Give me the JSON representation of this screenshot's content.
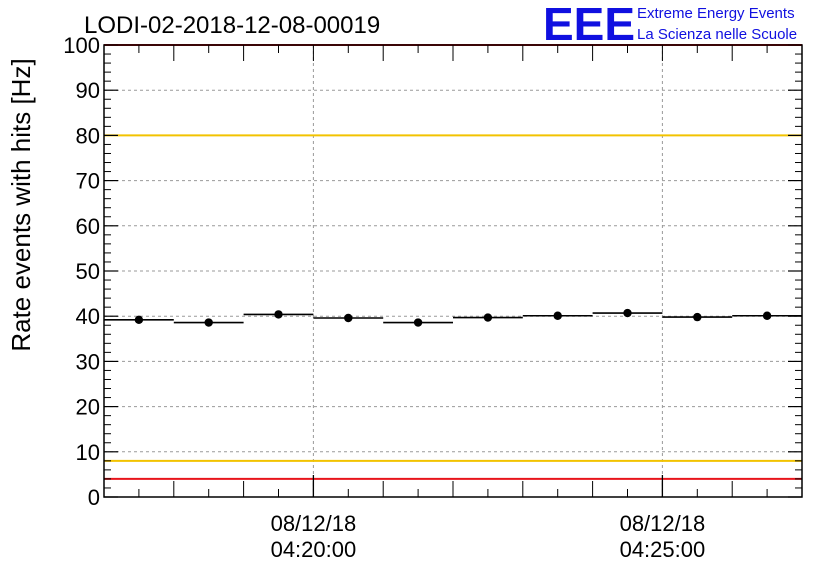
{
  "chart_data": {
    "type": "scatter",
    "title": "LODI-02-2018-12-08-00019",
    "ylabel": "Rate events with hits [Hz]",
    "xlabel": "",
    "ylim": [
      0,
      100
    ],
    "y_ticks": [
      0,
      10,
      20,
      30,
      40,
      50,
      60,
      70,
      80,
      90,
      100
    ],
    "x_range_minutes": [
      0,
      10
    ],
    "x_tick_labels": [
      {
        "date": "08/12/18",
        "time": "04:20:00",
        "at_minute": 3
      },
      {
        "date": "08/12/18",
        "time": "04:25:00",
        "at_minute": 8
      }
    ],
    "grid": true,
    "series": [
      {
        "points": [
          {
            "x_start": 0,
            "x_end": 1,
            "y": 39.2
          },
          {
            "x_start": 1,
            "x_end": 2,
            "y": 38.6
          },
          {
            "x_start": 2,
            "x_end": 3,
            "y": 40.4
          },
          {
            "x_start": 3,
            "x_end": 4,
            "y": 39.6
          },
          {
            "x_start": 4,
            "x_end": 5,
            "y": 38.6
          },
          {
            "x_start": 5,
            "x_end": 6,
            "y": 39.7
          },
          {
            "x_start": 6,
            "x_end": 7,
            "y": 40.1
          },
          {
            "x_start": 7,
            "x_end": 8,
            "y": 40.7
          },
          {
            "x_start": 8,
            "x_end": 9,
            "y": 39.8
          },
          {
            "x_start": 9,
            "x_end": 10,
            "y": 40.1
          }
        ]
      }
    ],
    "reference_lines": [
      {
        "y": 100,
        "color": "#e8141b"
      },
      {
        "y": 80,
        "color": "#f2c300"
      },
      {
        "y": 8,
        "color": "#f2c300"
      },
      {
        "y": 4,
        "color": "#e8141b"
      }
    ]
  },
  "logo": {
    "mark": "EEE",
    "line1": "Extreme Energy Events",
    "line2": "La Scienza nelle Scuole",
    "color": "#1010e0"
  }
}
